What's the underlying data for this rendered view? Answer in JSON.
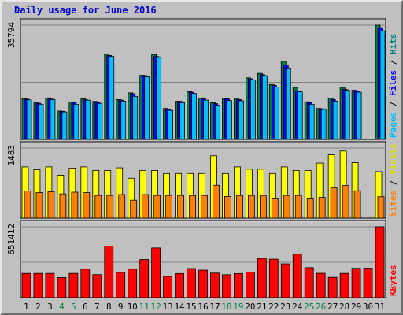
{
  "chart_data": {
    "type": "bar",
    "title": "Daily usage for June 2016",
    "categories": [
      "1",
      "2",
      "3",
      "4",
      "5",
      "6",
      "7",
      "8",
      "9",
      "10",
      "11",
      "12",
      "13",
      "14",
      "15",
      "16",
      "17",
      "18",
      "19",
      "20",
      "21",
      "22",
      "23",
      "24",
      "25",
      "26",
      "27",
      "28",
      "29",
      "30",
      "31"
    ],
    "weekend_days": [
      "4",
      "5",
      "11",
      "12",
      "18",
      "19",
      "25",
      "26"
    ],
    "panels": [
      {
        "name": "hits-pages-files",
        "max_label": "35794",
        "ymax": 35794,
        "side_label": [
          "Pages",
          "Files",
          "Hits"
        ],
        "series": [
          {
            "name": "Hits",
            "color": "#008040",
            "values": [
              12800,
              11600,
              13000,
              8900,
              11700,
              12700,
              11900,
              26700,
              12500,
              14600,
              20100,
              26600,
              9700,
              12000,
              15000,
              13000,
              11500,
              12900,
              12900,
              19300,
              20700,
              17200,
              24500,
              16300,
              11800,
              9700,
              12900,
              16300,
              15400,
              0,
              35794
            ]
          },
          {
            "name": "Files",
            "color": "#0000ff",
            "values": [
              12600,
              11300,
              12700,
              8800,
              11500,
              12400,
              11600,
              26300,
              12300,
              14300,
              20000,
              26000,
              9400,
              11900,
              14800,
              12700,
              11200,
              12700,
              12500,
              19000,
              20300,
              16900,
              23300,
              15200,
              11500,
              9600,
              12500,
              15700,
              15200,
              0,
              35000
            ]
          },
          {
            "name": "Pages",
            "color": "#00bfff",
            "values": [
              12400,
              11000,
              12500,
              8600,
              11000,
              12300,
              11300,
              26000,
              12000,
              13500,
              19600,
              25700,
              9100,
              11500,
              14400,
              12300,
              10700,
              12200,
              12100,
              18600,
              20000,
              16400,
              22400,
              14900,
              11000,
              9400,
              12000,
              15400,
              14800,
              0,
              34000
            ]
          }
        ]
      },
      {
        "name": "visits-sites",
        "max_label": "1483",
        "ymax": 1483,
        "side_label": [
          "Sites",
          "Visits"
        ],
        "series": [
          {
            "name": "Visits",
            "color": "#ffff00",
            "values": [
              1085,
              1025,
              1085,
              910,
              1060,
              1085,
              1010,
              1010,
              1065,
              845,
              1010,
              1010,
              945,
              945,
              945,
              945,
              1320,
              945,
              1085,
              1035,
              1035,
              945,
              1085,
              1010,
              1010,
              1165,
              1340,
              1420,
              1175,
              0,
              985
            ]
          },
          {
            "name": "Sites",
            "color": "#ff8000",
            "values": [
              575,
              540,
              560,
              515,
              550,
              540,
              480,
              480,
              500,
              380,
              500,
              480,
              480,
              480,
              480,
              480,
              695,
              460,
              480,
              480,
              480,
              410,
              480,
              480,
              410,
              440,
              640,
              690,
              580,
              0,
              455
            ]
          }
        ]
      },
      {
        "name": "kbytes",
        "max_label": "651412",
        "ymax": 651412,
        "side_label": [
          "KBytes"
        ],
        "series": [
          {
            "name": "KBytes",
            "color": "#ff0000",
            "values": [
              223000,
              223000,
              223000,
              185000,
              223000,
              262000,
              212000,
              474000,
              232000,
              262000,
              351000,
              457000,
              195000,
              222000,
              268000,
              253000,
              226000,
              211000,
              222000,
              236000,
              361000,
              354000,
              311000,
              400000,
              276000,
              224000,
              187000,
              223000,
              270000,
              272000,
              651412
            ]
          }
        ]
      }
    ],
    "grid": true
  },
  "colors": {
    "background": "#c0c0c0",
    "plot_bg": "#c0c0c0",
    "grid": "#808080",
    "title": "#0000cc",
    "weekday_label": "#000000",
    "weekend_label": "#008040"
  }
}
